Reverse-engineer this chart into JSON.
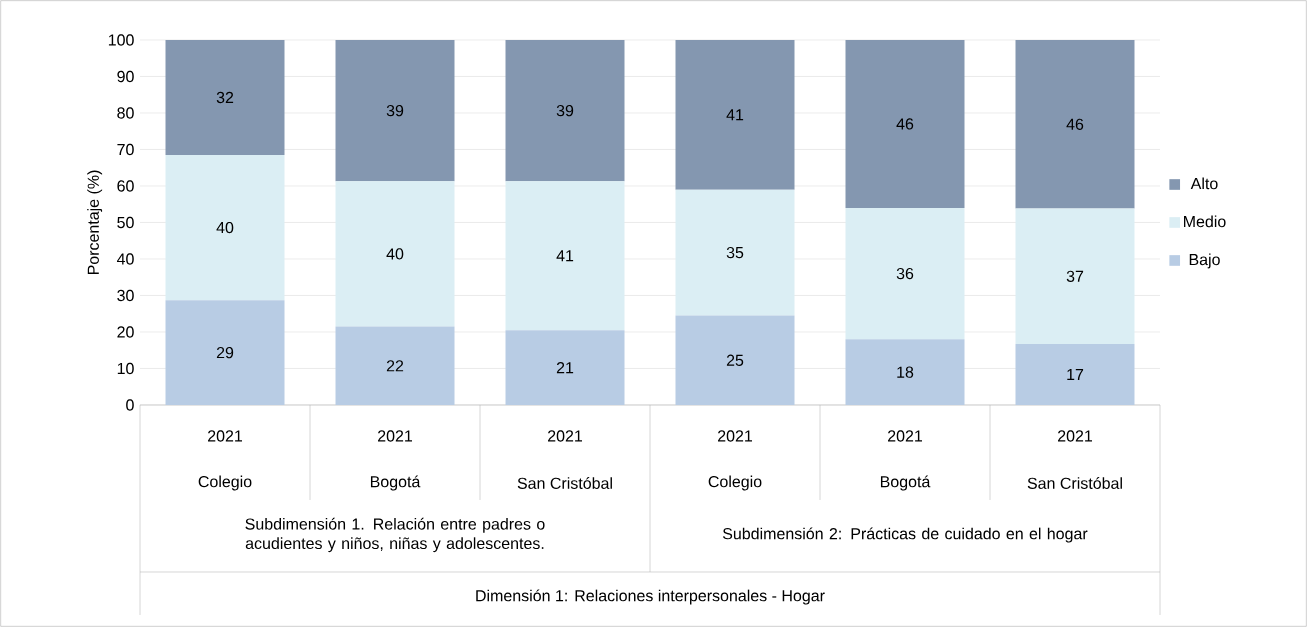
{
  "chart_data": {
    "type": "bar",
    "stacked": true,
    "ylabel": "Porcentaje (%)",
    "categories": [
      "2021",
      "2021",
      "2021",
      "2021",
      "2021",
      "2021"
    ],
    "series": [
      {
        "name": "Bajo",
        "color": "#b8cce4",
        "values": [
          28.7,
          21.5,
          20.5,
          24.5,
          18,
          16.7
        ],
        "value_labels": [
          "29",
          "22",
          "21",
          "25",
          "18",
          "17"
        ]
      },
      {
        "name": "Medio",
        "color": "#dbeef4",
        "values": [
          39.8,
          39.8,
          40.8,
          34.5,
          36,
          37.1
        ],
        "value_labels": [
          "40",
          "40",
          "41",
          "35",
          "36",
          "37"
        ]
      },
      {
        "name": "Alto",
        "color": "#8497b0",
        "values": [
          31.5,
          38.7,
          38.7,
          41,
          46,
          46.2
        ],
        "value_labels": [
          "32",
          "39",
          "39",
          "41",
          "46",
          "46"
        ]
      }
    ],
    "ylim": [
      0,
      100
    ],
    "yticks": [
      0,
      10,
      20,
      30,
      40,
      50,
      60,
      70,
      80,
      90,
      100
    ],
    "grid": "y",
    "legend": "right",
    "annotations": [
      "Colegio",
      "Bogotá",
      "San Cristóbal",
      "Colegio",
      "Bogotá",
      "San Cristóbal",
      "Subdimensión 1. Relación entre padres o acudientes y niños, niñas y adolescentes.",
      "Subdimensión 2: Prácticas de cuidado en el hogar",
      "Dimensión 1: Relaciones interpersonales - Hogar"
    ]
  }
}
